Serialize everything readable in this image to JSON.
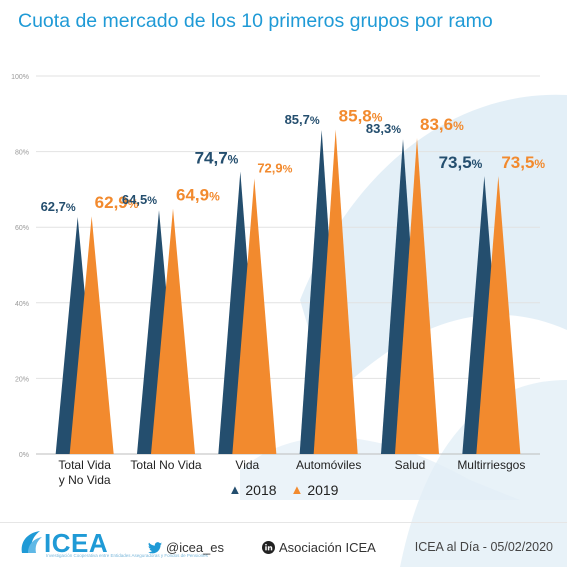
{
  "chart_data": {
    "type": "bar",
    "title": "Cuota de mercado de los 10 primeros grupos por ramo",
    "categories": [
      [
        "Total Vida",
        "y No Vida"
      ],
      [
        "Total No Vida"
      ],
      [
        "Vida"
      ],
      [
        "Automóviles"
      ],
      [
        "Salud"
      ],
      [
        "Multirriesgos"
      ]
    ],
    "series": [
      {
        "name": "2018",
        "color": "#244e6e",
        "values": [
          62.7,
          64.5,
          74.7,
          85.7,
          83.3,
          73.5
        ],
        "labels": [
          "62,7%",
          "64,5%",
          "74,7%",
          "85,7%",
          "83,3%",
          "73,5%"
        ]
      },
      {
        "name": "2019",
        "color": "#f28a2e",
        "values": [
          62.9,
          64.9,
          72.9,
          85.8,
          83.6,
          73.5
        ],
        "labels": [
          "62,9%",
          "64,9%",
          "72,9%",
          "85,8%",
          "83,6%",
          "73,5%"
        ]
      }
    ],
    "label_emphasis": {
      "2018": [
        false,
        false,
        true,
        false,
        false,
        true
      ],
      "2019": [
        true,
        true,
        false,
        true,
        true,
        true
      ]
    },
    "yticks": [
      "0%",
      "20%",
      "40%",
      "60%",
      "80%",
      "100%"
    ],
    "ylim": [
      0,
      100
    ],
    "grid": true,
    "legend": "bottom"
  },
  "footer": {
    "logo_text": "ICEA",
    "logo_tagline": "Investigación Cooperativa entre Entidades Aseguradoras y Fondos de Pensiones",
    "twitter": "@icea_es",
    "linkedin": "Asociación ICEA",
    "date_text": "ICEA al Día - 05/02/2020",
    "accent_color": "#1f9ad6"
  }
}
